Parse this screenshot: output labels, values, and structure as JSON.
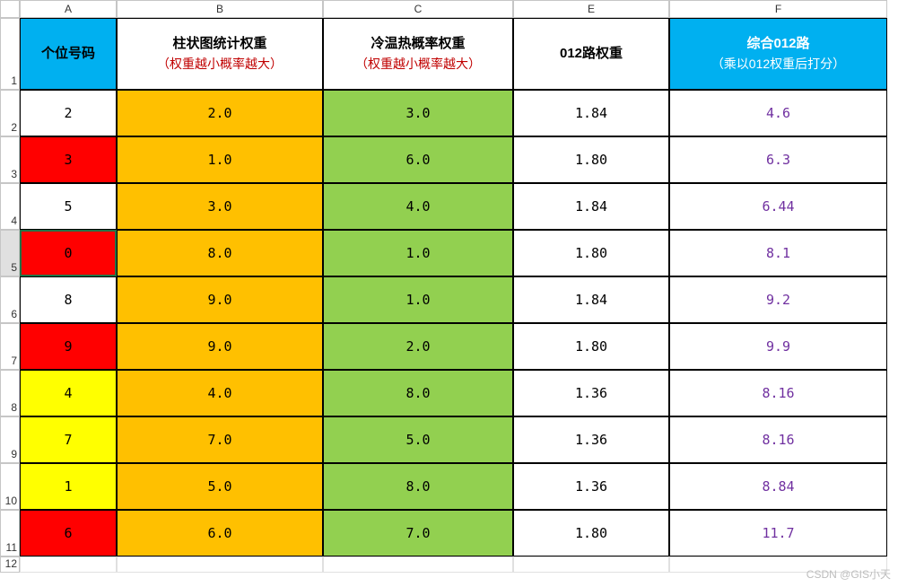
{
  "colors": {
    "header_blue": "#00b0f0",
    "orange": "#ffc000",
    "green": "#92d050",
    "yellow": "#ffff00",
    "red": "#ff0000",
    "white": "#ffffff",
    "purple_text": "#7030a0",
    "black_text": "#000000",
    "red_text": "#c00000",
    "white_text": "#ffffff",
    "grid_border": "#000000"
  },
  "column_letters": [
    "A",
    "B",
    "C",
    "E",
    "F"
  ],
  "row_numbers": [
    "1",
    "2",
    "3",
    "4",
    "5",
    "6",
    "7",
    "8",
    "9",
    "10",
    "11",
    "12"
  ],
  "selected_row": "5",
  "selected_cell": {
    "row": 5,
    "col": 0
  },
  "headers": [
    {
      "main": "个位号码",
      "sub": "",
      "bg": "#00b0f0",
      "fg": "#000000"
    },
    {
      "main": "柱状图统计权重",
      "sub": "（权重越小概率越大）",
      "bg": "#ffffff",
      "fg": "#000000"
    },
    {
      "main": "冷温热概率权重",
      "sub": "（权重越小概率越大）",
      "bg": "#ffffff",
      "fg": "#000000"
    },
    {
      "main": "012路权重",
      "sub": "",
      "bg": "#ffffff",
      "fg": "#000000"
    },
    {
      "main": "综合012路",
      "sub": "（乘以012权重后打分）",
      "bg": "#00b0f0",
      "fg": "#ffffff",
      "sub_fg": "#ffffff"
    }
  ],
  "rows": [
    {
      "a": {
        "v": "2",
        "bg": "#ffffff"
      },
      "b": "2.0",
      "c": "3.0",
      "e": "1.84",
      "f": "4.6"
    },
    {
      "a": {
        "v": "3",
        "bg": "#ff0000"
      },
      "b": "1.0",
      "c": "6.0",
      "e": "1.80",
      "f": "6.3"
    },
    {
      "a": {
        "v": "5",
        "bg": "#ffffff"
      },
      "b": "3.0",
      "c": "4.0",
      "e": "1.84",
      "f": "6.44"
    },
    {
      "a": {
        "v": "0",
        "bg": "#ff0000"
      },
      "b": "8.0",
      "c": "1.0",
      "e": "1.80",
      "f": "8.1"
    },
    {
      "a": {
        "v": "8",
        "bg": "#ffffff"
      },
      "b": "9.0",
      "c": "1.0",
      "e": "1.84",
      "f": "9.2"
    },
    {
      "a": {
        "v": "9",
        "bg": "#ff0000"
      },
      "b": "9.0",
      "c": "2.0",
      "e": "1.80",
      "f": "9.9"
    },
    {
      "a": {
        "v": "4",
        "bg": "#ffff00"
      },
      "b": "4.0",
      "c": "8.0",
      "e": "1.36",
      "f": "8.16"
    },
    {
      "a": {
        "v": "7",
        "bg": "#ffff00"
      },
      "b": "7.0",
      "c": "5.0",
      "e": "1.36",
      "f": "8.16"
    },
    {
      "a": {
        "v": "1",
        "bg": "#ffff00"
      },
      "b": "5.0",
      "c": "8.0",
      "e": "1.36",
      "f": "8.84"
    },
    {
      "a": {
        "v": "6",
        "bg": "#ff0000"
      },
      "b": "6.0",
      "c": "7.0",
      "e": "1.80",
      "f": "11.7"
    }
  ],
  "col_bg": {
    "b": "#ffc000",
    "c": "#92d050",
    "e": "#ffffff",
    "f": "#ffffff"
  },
  "col_fg": {
    "b": "#000000",
    "c": "#000000",
    "e": "#000000",
    "f": "#7030a0"
  },
  "watermark": "CSDN @GIS小天"
}
